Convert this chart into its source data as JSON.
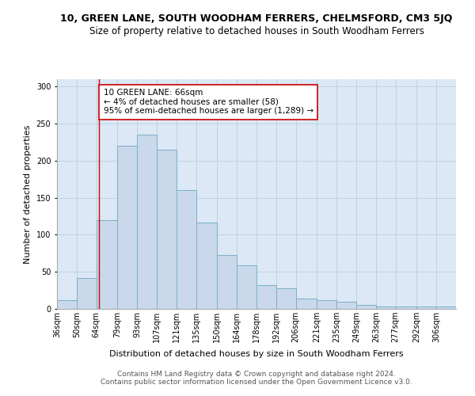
{
  "title": "10, GREEN LANE, SOUTH WOODHAM FERRERS, CHELMSFORD, CM3 5JQ",
  "subtitle": "Size of property relative to detached houses in South Woodham Ferrers",
  "xlabel": "Distribution of detached houses by size in South Woodham Ferrers",
  "ylabel": "Number of detached properties",
  "footer1": "Contains HM Land Registry data © Crown copyright and database right 2024.",
  "footer2": "Contains public sector information licensed under the Open Government Licence v3.0.",
  "annotation_line1": "10 GREEN LANE: 66sqm",
  "annotation_line2": "← 4% of detached houses are smaller (58)",
  "annotation_line3": "95% of semi-detached houses are larger (1,289) →",
  "property_size": 66,
  "bin_edges": [
    36,
    50,
    64,
    79,
    93,
    107,
    121,
    135,
    150,
    164,
    178,
    192,
    206,
    221,
    235,
    249,
    263,
    277,
    292,
    306,
    320
  ],
  "counts": [
    12,
    42,
    120,
    220,
    235,
    215,
    160,
    117,
    73,
    59,
    32,
    28,
    14,
    12,
    10,
    5,
    3,
    3,
    3,
    3
  ],
  "ylim": [
    0,
    310
  ],
  "yticks": [
    0,
    50,
    100,
    150,
    200,
    250,
    300
  ],
  "bar_color": "#c9d9eb",
  "bar_edge_color": "#7aafc8",
  "vline_color": "#cc0000",
  "background_color": "#ffffff",
  "axes_bg_color": "#dce8f5",
  "grid_color": "#b8cfe0",
  "title_fontsize": 9,
  "subtitle_fontsize": 8.5,
  "label_fontsize": 8,
  "tick_fontsize": 7,
  "footer_fontsize": 6.5,
  "annotation_fontsize": 7.5
}
